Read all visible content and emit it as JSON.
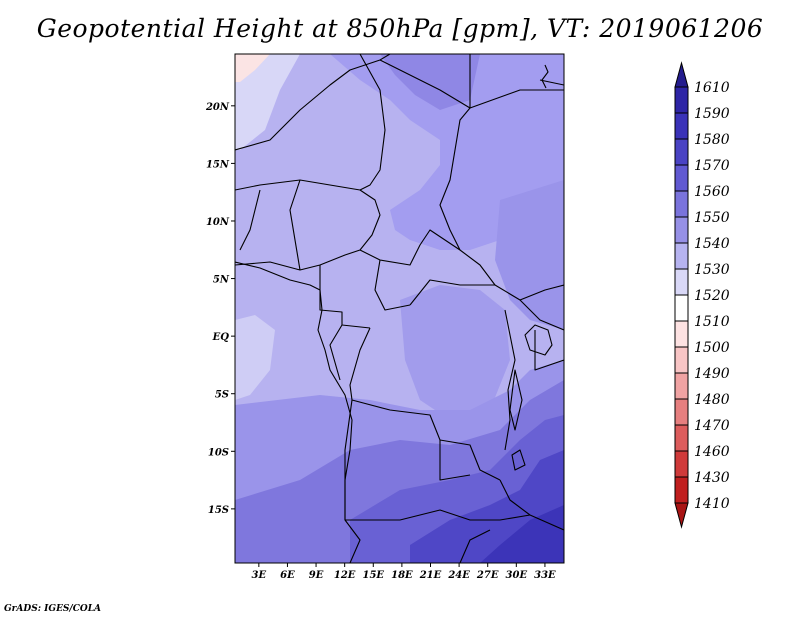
{
  "title": "Geopotential Height at 850hPa [gpm], VT: 2019061206",
  "credit": "GrADS: IGES/COLA",
  "map": {
    "lat_axis": [
      {
        "label": "20N",
        "value": 20
      },
      {
        "label": "15N",
        "value": 15
      },
      {
        "label": "10N",
        "value": 10
      },
      {
        "label": "5N",
        "value": 5
      },
      {
        "label": "EQ",
        "value": 0
      },
      {
        "label": "5S",
        "value": -5
      },
      {
        "label": "10S",
        "value": -10
      },
      {
        "label": "15S",
        "value": -15
      }
    ],
    "lon_axis": [
      {
        "label": "3E",
        "value": 3
      },
      {
        "label": "6E",
        "value": 6
      },
      {
        "label": "9E",
        "value": 9
      },
      {
        "label": "12E",
        "value": 12
      },
      {
        "label": "15E",
        "value": 15
      },
      {
        "label": "18E",
        "value": 18
      },
      {
        "label": "21E",
        "value": 21
      },
      {
        "label": "24E",
        "value": 24
      },
      {
        "label": "27E",
        "value": 27
      },
      {
        "label": "30E",
        "value": 30
      },
      {
        "label": "33E",
        "value": 33
      }
    ],
    "lon_range": [
      0.5,
      35
    ],
    "lat_range": [
      -19.7,
      24.5
    ]
  },
  "colorbar": {
    "levels": [
      {
        "label": "1610",
        "color": "#241c8e"
      },
      {
        "label": "1590",
        "color": "#2e25a6"
      },
      {
        "label": "1580",
        "color": "#3a32b8"
      },
      {
        "label": "1570",
        "color": "#4a43c4"
      },
      {
        "label": "1560",
        "color": "#6159d2"
      },
      {
        "label": "1550",
        "color": "#7a73dc"
      },
      {
        "label": "1540",
        "color": "#9690e6"
      },
      {
        "label": "1530",
        "color": "#b6b3f0"
      },
      {
        "label": "1520",
        "color": "#d9d8f7"
      },
      {
        "label": "1510",
        "color": "#ffffff"
      },
      {
        "label": "1500",
        "color": "#fde2e2"
      },
      {
        "label": "1490",
        "color": "#f8c5c5"
      },
      {
        "label": "1480",
        "color": "#f0a3a3"
      },
      {
        "label": "1470",
        "color": "#e67f7f"
      },
      {
        "label": "1460",
        "color": "#dc5c5c"
      },
      {
        "label": "1430",
        "color": "#cf3a3a"
      },
      {
        "label": "1410",
        "color": "#c01f1f"
      }
    ],
    "bottom_color": "#a81414"
  }
}
